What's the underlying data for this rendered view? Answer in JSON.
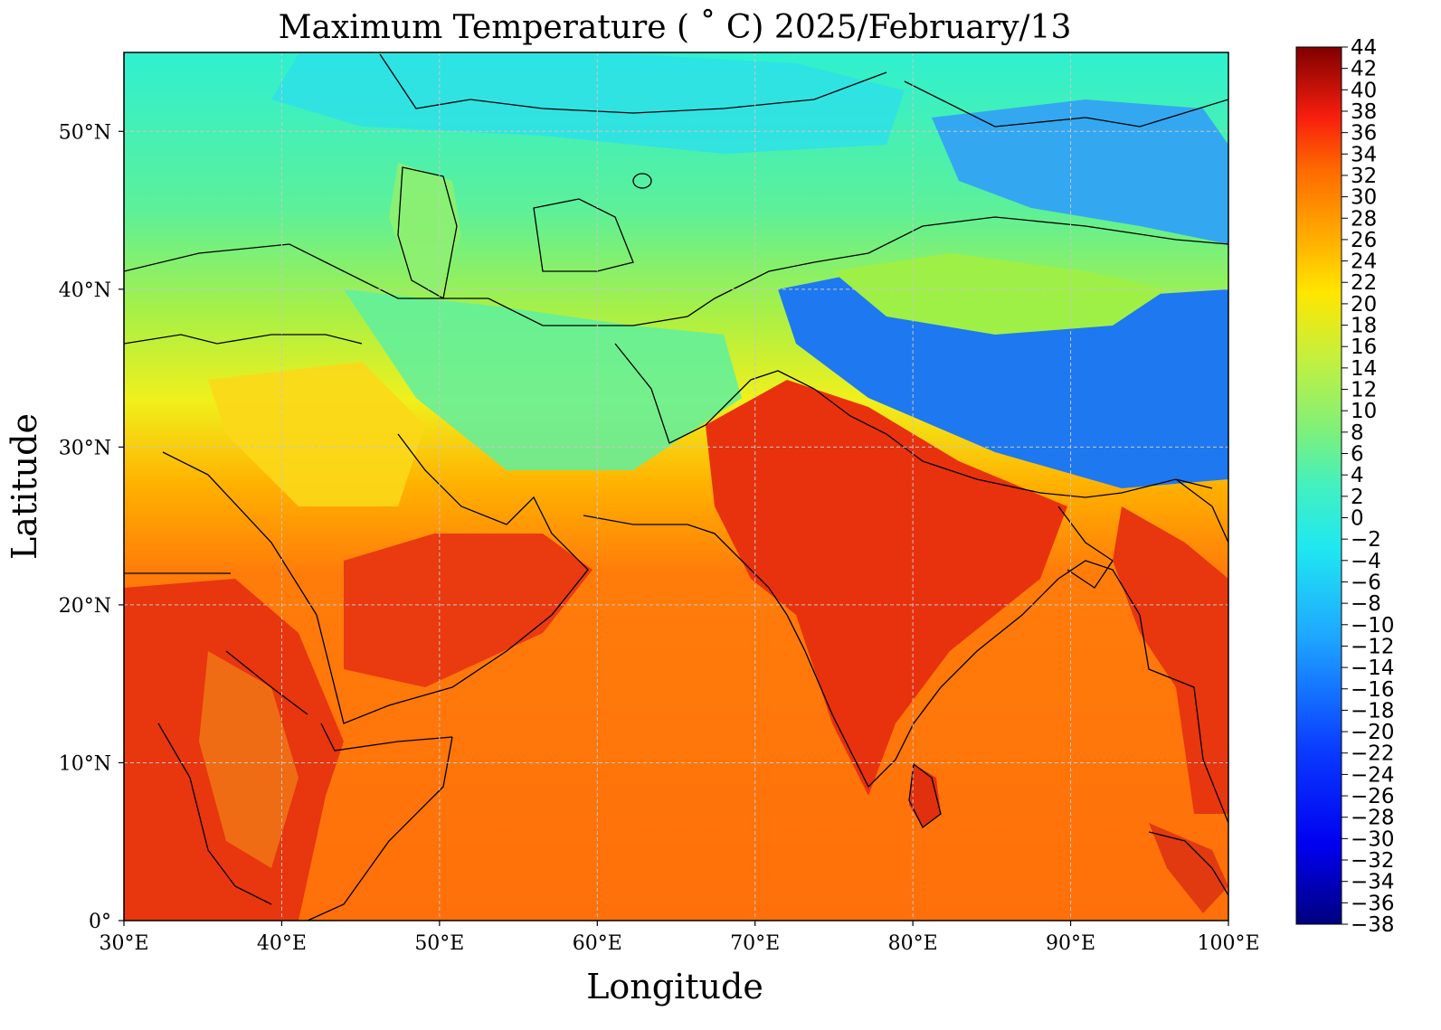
{
  "title": "Maximum Temperature ( ˚ C)  2025/February/13",
  "xlabel": "Longitude",
  "ylabel": "Latitude",
  "map": {
    "lon_range": [
      30,
      100
    ],
    "lat_range": [
      0,
      55
    ],
    "xticks": [
      {
        "value": 30,
        "label": "30°E"
      },
      {
        "value": 40,
        "label": "40°E"
      },
      {
        "value": 50,
        "label": "50°E"
      },
      {
        "value": 60,
        "label": "60°E"
      },
      {
        "value": 70,
        "label": "70°E"
      },
      {
        "value": 80,
        "label": "80°E"
      },
      {
        "value": 90,
        "label": "90°E"
      },
      {
        "value": 100,
        "label": "100°E"
      }
    ],
    "yticks": [
      {
        "value": 0,
        "label": "0°"
      },
      {
        "value": 10,
        "label": "10°N"
      },
      {
        "value": 20,
        "label": "20°N"
      },
      {
        "value": 30,
        "label": "30°N"
      },
      {
        "value": 40,
        "label": "40°N"
      },
      {
        "value": 50,
        "label": "50°N"
      }
    ],
    "gridlines": true
  },
  "colorbar": {
    "min": -38,
    "max": 44,
    "labels": [
      "44",
      "42",
      "40",
      "38",
      "36",
      "34",
      "32",
      "30",
      "28",
      "26",
      "24",
      "22",
      "20",
      "18",
      "16",
      "14",
      "12",
      "10",
      "8",
      "6",
      "4",
      "2",
      "0",
      "−2",
      "−4",
      "−6",
      "−8",
      "−10",
      "−12",
      "−14",
      "−16",
      "−18",
      "−20",
      "−22",
      "−24",
      "−26",
      "−28",
      "−30",
      "−32",
      "−34",
      "−36",
      "−38"
    ]
  },
  "colors": {
    "sea": "#ff7a10",
    "cold": "#2a6cf0",
    "cool": "#30e8d8",
    "mild": "#9ef046",
    "warm": "#ffd21a",
    "hot": "#e8260e",
    "border": "#000000",
    "grid": "#bdbdbd"
  }
}
